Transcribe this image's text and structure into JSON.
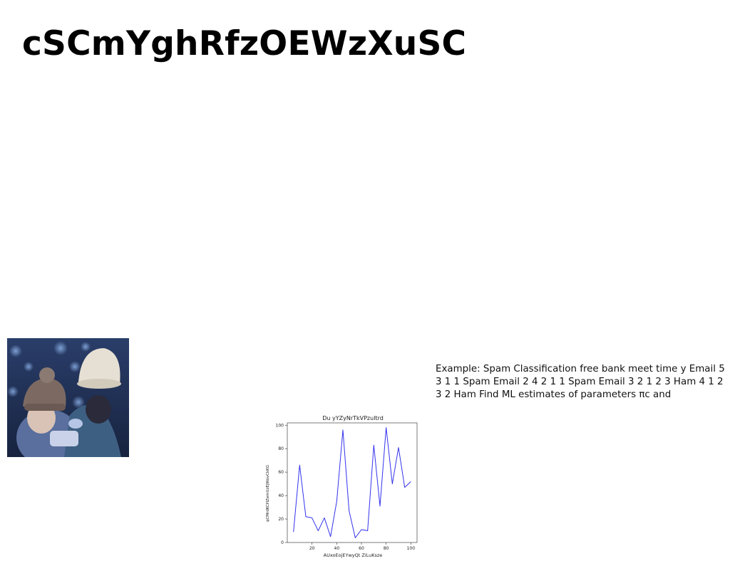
{
  "page": {
    "title": "cSCmYghRfzOEWzXuSC",
    "paragraph": "Example: Spam Classification free bank meet time y Email 5 3 1 1 Spam Email 2 4 2 1 1 Spam Email 3 2 1 2 3 Ham 4 1 2 3 2 Ham Find ML estimates of parameters πc and"
  },
  "chart_data": {
    "type": "line",
    "title": "Du yYZyNrTkVPzultrd",
    "xlabel": "AUxoEojEYwyQt ZiLuKsze",
    "ylabel": "qCMrdKCHZemUzEjWovCkKG",
    "x": [
      5,
      10,
      15,
      20,
      25,
      30,
      35,
      40,
      45,
      50,
      55,
      60,
      65,
      70,
      75,
      80,
      85,
      90,
      95,
      100
    ],
    "series": [
      {
        "name": "series-1",
        "color": "#3333ee",
        "values": [
          9,
          66,
          22,
          21,
          10,
          21,
          5,
          35,
          96,
          27,
          4,
          11,
          10,
          83,
          31,
          98,
          50,
          81,
          47,
          52
        ]
      }
    ],
    "xlim": [
      0,
      105
    ],
    "ylim": [
      0,
      102
    ],
    "xticks": [
      20,
      40,
      60,
      80,
      100
    ],
    "yticks": [
      0,
      20,
      40,
      60,
      80,
      100
    ],
    "grid": false
  }
}
